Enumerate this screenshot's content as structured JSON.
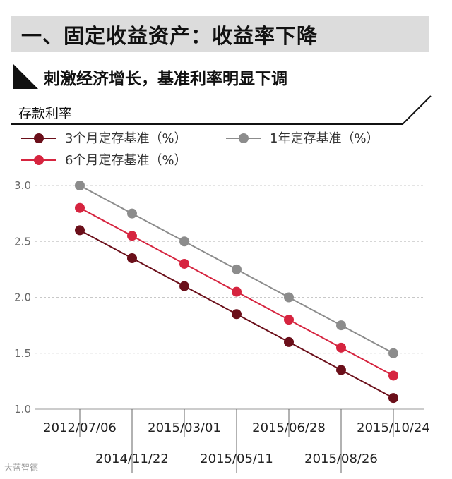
{
  "header": {
    "title": "一、固定收益资产：收益率下降"
  },
  "section": {
    "title": "刺激经济增长，基准利率明显下调"
  },
  "watermark": "大蓝智德",
  "chart_data": {
    "type": "line",
    "title": "",
    "ylabel": "存款利率",
    "xlabel": "",
    "ylim": [
      1.0,
      3.0
    ],
    "yticks": [
      "3.0",
      "2.5",
      "2.0",
      "1.5",
      "1.0"
    ],
    "ytick_values": [
      3.0,
      2.5,
      2.0,
      1.5,
      1.0
    ],
    "grid": "horizontal dashed",
    "categories": [
      "2012/07/06",
      "2014/11/22",
      "2015/03/01",
      "2015/05/11",
      "2015/06/28",
      "2015/08/26",
      "2015/10/24"
    ],
    "series": [
      {
        "name": "3个月定存基准（%）",
        "color": "#6b0f1a",
        "values": [
          2.6,
          2.35,
          2.1,
          1.85,
          1.6,
          1.35,
          1.1
        ]
      },
      {
        "name": "6个月定存基准（%）",
        "color": "#d6243f",
        "values": [
          2.8,
          2.55,
          2.3,
          2.05,
          1.8,
          1.55,
          1.3
        ]
      },
      {
        "name": "1年定存基准（%）",
        "color": "#8c8c8c",
        "values": [
          3.0,
          2.75,
          2.5,
          2.25,
          2.0,
          1.75,
          1.5
        ]
      }
    ]
  }
}
